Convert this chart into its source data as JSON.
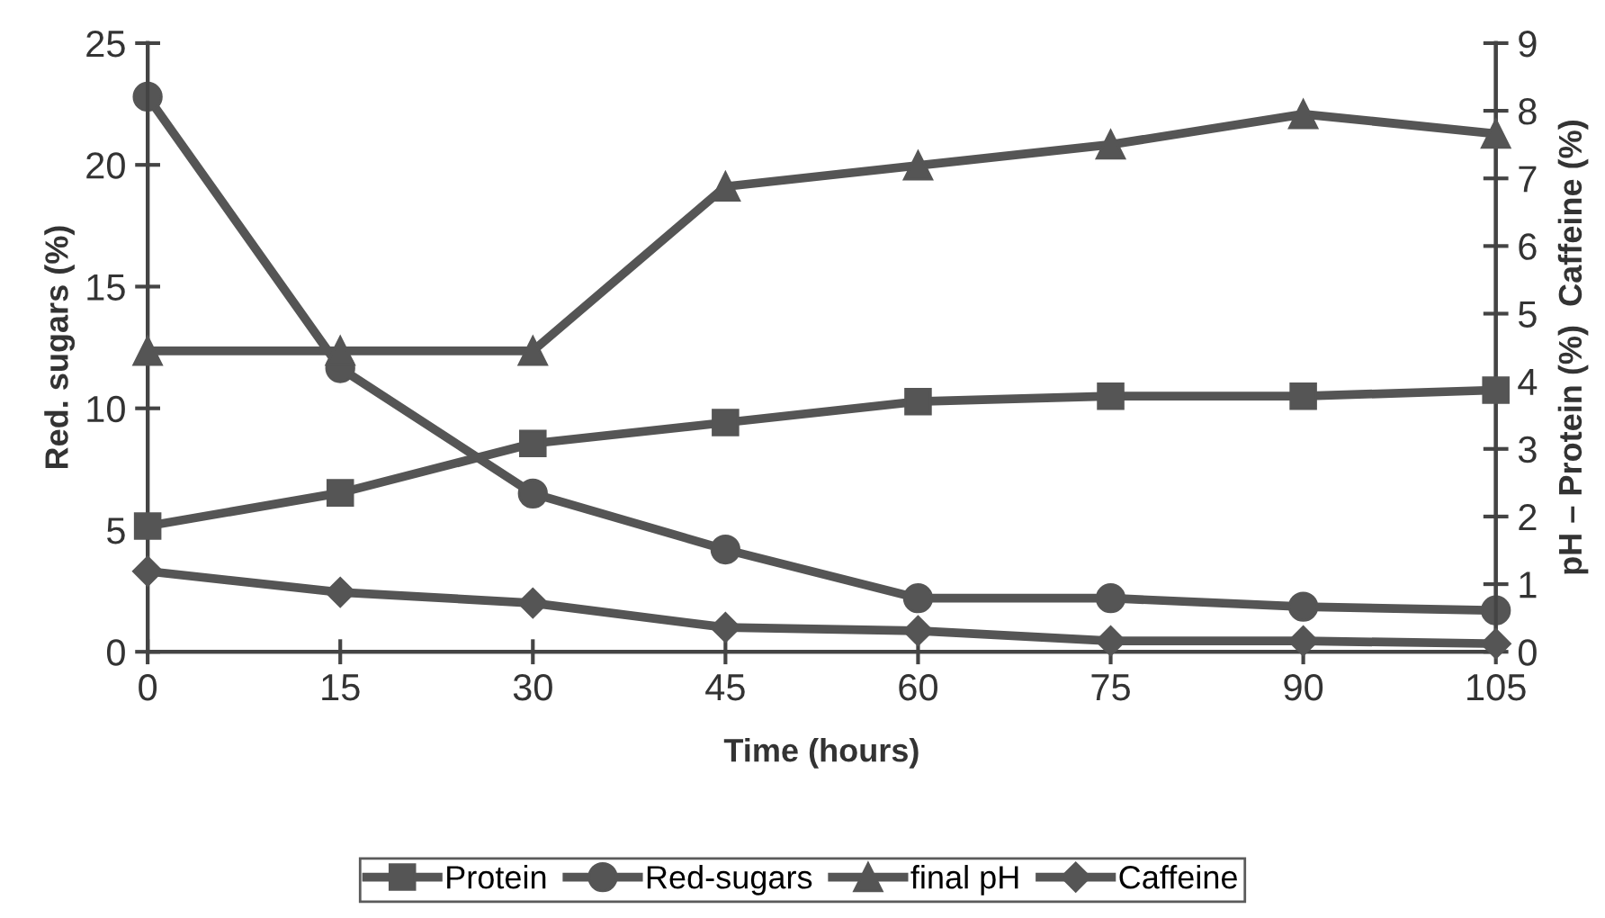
{
  "chart_data": {
    "type": "line",
    "xlabel": "Time (hours)",
    "ylabel": "Red. sugars (%)",
    "y2label": "pH – Protein (%)  Caffeine (%)",
    "x": [
      0,
      15,
      30,
      45,
      60,
      75,
      90,
      105
    ],
    "xlim": [
      0,
      105
    ],
    "xticks": [
      0,
      15,
      30,
      45,
      60,
      75,
      90,
      105
    ],
    "ylim": [
      0,
      25
    ],
    "yticks": [
      0,
      5,
      10,
      15,
      20,
      25
    ],
    "y2lim": [
      0,
      9
    ],
    "y2ticks": [
      0,
      1,
      2,
      3,
      4,
      5,
      6,
      7,
      8,
      9
    ],
    "legend": "bottom",
    "grid": false,
    "line_style": "solid",
    "series": [
      {
        "name": "Protein",
        "color": "#555555",
        "marker": "square",
        "axis": "y2",
        "values": [
          1.86,
          2.35,
          3.08,
          3.39,
          3.7,
          3.78,
          3.78,
          3.87
        ]
      },
      {
        "name": "Red-sugars",
        "color": "#555555",
        "marker": "circle",
        "values": [
          22.8,
          11.65,
          6.5,
          4.2,
          2.2,
          2.2,
          1.85,
          1.7
        ]
      },
      {
        "name": "final pH",
        "color": "#555555",
        "marker": "triangle",
        "axis": "y2",
        "values": [
          4.45,
          4.45,
          4.45,
          6.88,
          7.19,
          7.5,
          7.95,
          7.66
        ]
      },
      {
        "name": "Caffeine",
        "color": "#555555",
        "marker": "diamond",
        "axis": "y2",
        "values": [
          1.19,
          0.88,
          0.72,
          0.36,
          0.31,
          0.16,
          0.16,
          0.12
        ]
      }
    ]
  }
}
